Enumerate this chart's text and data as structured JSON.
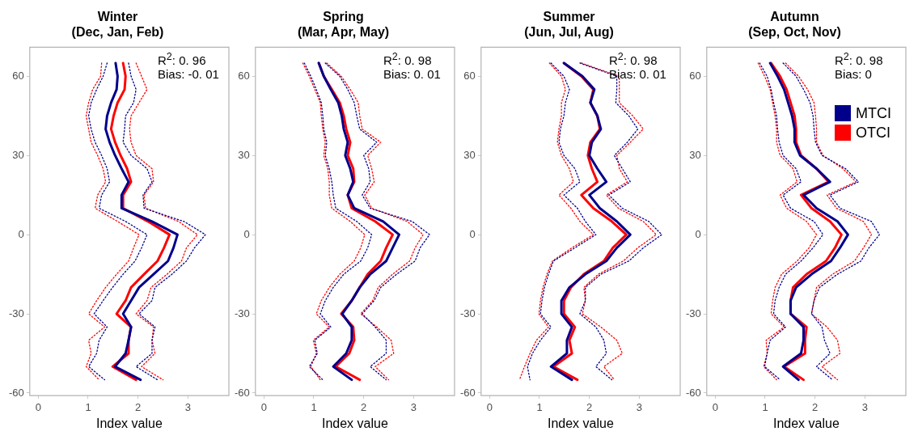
{
  "chart_data": [
    {
      "type": "line",
      "title": "Winter",
      "subtitle": "(Dec, Jan, Feb)",
      "xlabel": "Index value",
      "annotations": [
        "R$^{2}$: 0. 96",
        "Bias: -0. 01"
      ],
      "xlim": [
        -0.17,
        3.82
      ],
      "xticks": [
        0,
        1,
        2,
        3
      ],
      "ylim": [
        -61,
        71
      ],
      "yticks": [
        -60,
        -30,
        0,
        30,
        60
      ],
      "grid": false,
      "marker": "none",
      "series": [
        {
          "color": "#00008b",
          "line_style": "dotted",
          "x": [
            1.38,
            1.3,
            1.17,
            1.06,
            1.01,
            1.06,
            1.14,
            1.27,
            1.38,
            1.43,
            1.27,
            1.22,
            1.75,
            2.18,
            2.07,
            1.94,
            1.7,
            1.49,
            1.3,
            1.12,
            1.38,
            1.22,
            1.17,
            1.01,
            1.33
          ],
          "values": [
            65,
            60,
            55,
            50,
            45,
            40,
            35,
            30,
            25,
            20,
            15,
            10,
            5,
            0,
            -5,
            -10,
            -15,
            -20,
            -25,
            -30,
            -35,
            -40,
            -45,
            -50,
            -55
          ]
        },
        {
          "color": "#ff0000",
          "line_style": "dotted",
          "x": [
            1.27,
            1.25,
            1.09,
            1.01,
            0.96,
            1.01,
            1.06,
            1.19,
            1.3,
            1.35,
            1.19,
            1.14,
            1.59,
            2.02,
            1.91,
            1.81,
            1.57,
            1.35,
            1.17,
            1.01,
            1.33,
            1.01,
            1.06,
            0.96,
            1.22
          ],
          "values": [
            65,
            60,
            55,
            50,
            45,
            40,
            35,
            30,
            25,
            20,
            15,
            10,
            5,
            0,
            -5,
            -10,
            -15,
            -20,
            -25,
            -30,
            -35,
            -40,
            -45,
            -50,
            -55
          ]
        },
        {
          "color": "#00008b",
          "line_style": "dotted",
          "x": [
            1.81,
            1.86,
            1.96,
            1.91,
            1.75,
            1.73,
            1.7,
            1.86,
            2.18,
            2.28,
            2.1,
            2.12,
            2.92,
            3.35,
            3.13,
            2.97,
            2.68,
            2.34,
            2.28,
            2.02,
            2.34,
            2.28,
            2.28,
            1.96,
            2.39
          ],
          "values": [
            65,
            60,
            55,
            50,
            45,
            40,
            35,
            30,
            25,
            20,
            15,
            10,
            5,
            0,
            -5,
            -10,
            -15,
            -20,
            -25,
            -30,
            -35,
            -40,
            -45,
            -50,
            -55
          ]
        },
        {
          "color": "#ff0000",
          "line_style": "dotted",
          "x": [
            1.96,
            2.07,
            2.18,
            2.02,
            1.86,
            1.83,
            1.86,
            1.96,
            2.28,
            2.31,
            2.12,
            2.15,
            2.81,
            3.19,
            2.97,
            2.87,
            2.58,
            2.26,
            2.18,
            1.96,
            2.31,
            2.28,
            2.34,
            2.07,
            2.5
          ],
          "values": [
            65,
            60,
            55,
            50,
            45,
            40,
            35,
            30,
            25,
            20,
            15,
            10,
            5,
            0,
            -5,
            -10,
            -15,
            -20,
            -25,
            -30,
            -35,
            -40,
            -45,
            -50,
            -55
          ]
        },
        {
          "color": "#00008b",
          "line_style": "solid",
          "x": [
            1.55,
            1.59,
            1.57,
            1.46,
            1.38,
            1.35,
            1.43,
            1.54,
            1.67,
            1.81,
            1.67,
            1.67,
            2.28,
            2.79,
            2.71,
            2.6,
            2.31,
            2.02,
            1.86,
            1.7,
            1.86,
            1.81,
            1.75,
            1.54,
            2.05
          ],
          "values": [
            65,
            60,
            55,
            50,
            45,
            40,
            35,
            30,
            25,
            20,
            15,
            10,
            5,
            0,
            -5,
            -10,
            -15,
            -20,
            -25,
            -30,
            -35,
            -40,
            -45,
            -50,
            -55
          ]
        },
        {
          "color": "#ff0000",
          "line_style": "solid",
          "x": [
            1.7,
            1.75,
            1.73,
            1.59,
            1.51,
            1.46,
            1.54,
            1.65,
            1.78,
            1.86,
            1.7,
            1.7,
            2.2,
            2.63,
            2.52,
            2.39,
            2.12,
            1.86,
            1.75,
            1.57,
            1.86,
            1.81,
            1.81,
            1.49,
            1.96
          ],
          "values": [
            65,
            60,
            55,
            50,
            45,
            40,
            35,
            30,
            25,
            20,
            15,
            10,
            5,
            0,
            -5,
            -10,
            -15,
            -20,
            -25,
            -30,
            -35,
            -40,
            -45,
            -50,
            -55
          ]
        }
      ]
    },
    {
      "type": "line",
      "title": "Spring",
      "subtitle": "(Mar, Apr, May)",
      "xlabel": "Index value",
      "annotations": [
        "R$^{2}$: 0. 98",
        "Bias: 0. 01"
      ],
      "xlim": [
        -0.17,
        3.82
      ],
      "xticks": [
        0,
        1,
        2,
        3
      ],
      "ylim": [
        -61,
        71
      ],
      "yticks": [
        -60,
        -30,
        0,
        30,
        60
      ],
      "grid": false,
      "marker": "none",
      "series": [
        {
          "color": "#00008b",
          "line_style": "dotted",
          "x": [
            0.81,
            0.94,
            1.05,
            1.15,
            1.18,
            1.2,
            1.26,
            1.23,
            1.31,
            1.36,
            1.39,
            1.44,
            1.86,
            2.16,
            2.08,
            1.94,
            1.6,
            1.39,
            1.23,
            1.13,
            1.34,
            1.02,
            1.07,
            0.91,
            1.18
          ],
          "values": [
            65,
            60,
            55,
            50,
            45,
            40,
            35,
            30,
            25,
            20,
            15,
            10,
            5,
            0,
            -5,
            -10,
            -15,
            -20,
            -25,
            -30,
            -35,
            -40,
            -45,
            -50,
            -55
          ]
        },
        {
          "color": "#ff0000",
          "line_style": "dotted",
          "x": [
            0.78,
            0.91,
            1.02,
            1.13,
            1.15,
            1.18,
            1.23,
            1.2,
            1.28,
            1.31,
            1.31,
            1.36,
            1.73,
            2.02,
            1.94,
            1.81,
            1.52,
            1.31,
            1.15,
            1.05,
            1.31,
            0.99,
            1.05,
            0.94,
            1.13
          ],
          "values": [
            65,
            60,
            55,
            50,
            45,
            40,
            35,
            30,
            25,
            20,
            15,
            10,
            5,
            0,
            -5,
            -10,
            -15,
            -20,
            -25,
            -30,
            -35,
            -40,
            -45,
            -50,
            -55
          ]
        },
        {
          "color": "#00008b",
          "line_style": "dotted",
          "x": [
            1.23,
            1.52,
            1.68,
            1.81,
            1.86,
            1.92,
            2.26,
            2.0,
            2.1,
            2.13,
            1.97,
            2.13,
            2.97,
            3.32,
            3.13,
            3.03,
            2.66,
            2.34,
            2.21,
            1.97,
            2.23,
            2.45,
            2.45,
            2.13,
            2.45
          ],
          "values": [
            65,
            60,
            55,
            50,
            45,
            40,
            35,
            30,
            25,
            20,
            15,
            10,
            5,
            0,
            -5,
            -10,
            -15,
            -20,
            -25,
            -30,
            -35,
            -40,
            -45,
            -50,
            -55
          ]
        },
        {
          "color": "#ff0000",
          "line_style": "dotted",
          "x": [
            1.26,
            1.55,
            1.73,
            1.89,
            1.92,
            1.97,
            2.34,
            2.08,
            2.16,
            2.21,
            2.02,
            2.16,
            2.87,
            3.19,
            3.03,
            2.92,
            2.58,
            2.29,
            2.18,
            1.94,
            2.26,
            2.55,
            2.6,
            2.23,
            2.5
          ],
          "values": [
            65,
            60,
            55,
            50,
            45,
            40,
            35,
            30,
            25,
            20,
            15,
            10,
            5,
            0,
            -5,
            -10,
            -15,
            -20,
            -25,
            -30,
            -35,
            -40,
            -45,
            -50,
            -55
          ]
        },
        {
          "color": "#00008b",
          "line_style": "solid",
          "x": [
            1.1,
            1.2,
            1.34,
            1.49,
            1.56,
            1.6,
            1.68,
            1.63,
            1.73,
            1.79,
            1.68,
            1.81,
            2.39,
            2.71,
            2.58,
            2.45,
            2.13,
            1.92,
            1.76,
            1.57,
            1.76,
            1.76,
            1.65,
            1.39,
            1.76
          ],
          "values": [
            65,
            60,
            55,
            50,
            45,
            40,
            35,
            30,
            25,
            20,
            15,
            10,
            5,
            0,
            -5,
            -10,
            -15,
            -20,
            -25,
            -30,
            -35,
            -40,
            -45,
            -50,
            -55
          ]
        },
        {
          "color": "#ff0000",
          "line_style": "solid",
          "x": [
            1.1,
            1.2,
            1.36,
            1.52,
            1.6,
            1.65,
            1.73,
            1.68,
            1.79,
            1.81,
            1.68,
            1.76,
            2.23,
            2.58,
            2.45,
            2.34,
            2.08,
            1.92,
            1.76,
            1.55,
            1.79,
            1.81,
            1.71,
            1.44,
            1.92
          ],
          "values": [
            65,
            60,
            55,
            50,
            45,
            40,
            35,
            30,
            25,
            20,
            15,
            10,
            5,
            0,
            -5,
            -10,
            -15,
            -20,
            -25,
            -30,
            -35,
            -40,
            -45,
            -50,
            -55
          ]
        }
      ]
    },
    {
      "type": "line",
      "title": "Summer",
      "subtitle": "(Jun, Jul, Aug)",
      "xlabel": "Index value",
      "annotations": [
        "R$^{2}$: 0. 98",
        "Bias: 0. 01"
      ],
      "xlim": [
        -0.17,
        3.82
      ],
      "xticks": [
        0,
        1,
        2,
        3
      ],
      "ylim": [
        -61,
        71
      ],
      "yticks": [
        -60,
        -30,
        0,
        30,
        60
      ],
      "grid": false,
      "marker": "none",
      "series": [
        {
          "color": "#00008b",
          "line_style": "dotted",
          "x": [
            1.23,
            1.49,
            1.6,
            1.52,
            1.49,
            1.42,
            1.39,
            1.49,
            1.71,
            1.81,
            1.49,
            1.76,
            1.92,
            2.13,
            1.71,
            1.28,
            1.18,
            1.1,
            1.05,
            1.02,
            1.23,
            1.02,
            0.86,
            0.76,
            0.81
          ],
          "values": [
            65,
            60,
            55,
            50,
            45,
            40,
            35,
            30,
            25,
            20,
            15,
            10,
            5,
            0,
            -5,
            -10,
            -15,
            -20,
            -25,
            -30,
            -35,
            -40,
            -45,
            -50,
            -55
          ]
        },
        {
          "color": "#ff0000",
          "line_style": "dotted",
          "x": [
            1.2,
            1.44,
            1.52,
            1.44,
            1.44,
            1.39,
            1.36,
            1.44,
            1.6,
            1.68,
            1.39,
            1.63,
            1.81,
            2.08,
            1.65,
            1.26,
            1.15,
            1.07,
            1.02,
            0.99,
            1.18,
            0.94,
            0.81,
            0.7,
            0.6
          ],
          "values": [
            65,
            60,
            55,
            50,
            45,
            40,
            35,
            30,
            25,
            20,
            15,
            10,
            5,
            0,
            -5,
            -10,
            -15,
            -20,
            -25,
            -30,
            -35,
            -40,
            -45,
            -50,
            -55
          ]
        },
        {
          "color": "#00008b",
          "line_style": "dotted",
          "x": [
            1.81,
            2.55,
            2.55,
            2.53,
            2.79,
            2.97,
            2.76,
            2.5,
            2.66,
            2.82,
            2.39,
            2.66,
            3.19,
            3.45,
            3.08,
            2.79,
            2.23,
            1.92,
            1.92,
            1.81,
            2.13,
            2.29,
            2.34,
            2.13,
            2.45
          ],
          "values": [
            65,
            60,
            55,
            50,
            45,
            40,
            35,
            30,
            25,
            20,
            15,
            10,
            5,
            0,
            -5,
            -10,
            -15,
            -20,
            -25,
            -30,
            -35,
            -40,
            -45,
            -50,
            -55
          ]
        },
        {
          "color": "#ff0000",
          "line_style": "dotted",
          "x": [
            1.84,
            2.6,
            2.6,
            2.6,
            2.87,
            3.08,
            2.82,
            2.55,
            2.6,
            2.76,
            2.34,
            2.58,
            3.08,
            3.34,
            2.97,
            2.68,
            2.18,
            1.89,
            1.92,
            1.86,
            2.23,
            2.55,
            2.66,
            2.29,
            2.5
          ],
          "values": [
            65,
            60,
            55,
            50,
            45,
            40,
            35,
            30,
            25,
            20,
            15,
            10,
            5,
            0,
            -5,
            -10,
            -15,
            -20,
            -25,
            -30,
            -35,
            -40,
            -45,
            -50,
            -55
          ]
        },
        {
          "color": "#00008b",
          "line_style": "solid",
          "x": [
            1.49,
            1.86,
            2.1,
            2.02,
            2.16,
            2.23,
            2.05,
            2.0,
            2.16,
            2.34,
            2.0,
            2.21,
            2.55,
            2.82,
            2.55,
            2.34,
            1.92,
            1.6,
            1.44,
            1.44,
            1.65,
            1.55,
            1.55,
            1.23,
            1.65
          ],
          "values": [
            65,
            60,
            55,
            50,
            45,
            40,
            35,
            30,
            25,
            20,
            15,
            10,
            5,
            0,
            -5,
            -10,
            -15,
            -20,
            -25,
            -30,
            -35,
            -40,
            -45,
            -50,
            -55
          ]
        },
        {
          "color": "#ff0000",
          "line_style": "solid",
          "x": [
            1.49,
            1.84,
            2.08,
            2.02,
            2.16,
            2.21,
            2.02,
            1.97,
            2.05,
            2.16,
            1.84,
            2.08,
            2.45,
            2.74,
            2.47,
            2.29,
            1.89,
            1.63,
            1.49,
            1.49,
            1.71,
            1.6,
            1.65,
            1.28,
            1.76
          ],
          "values": [
            65,
            60,
            55,
            50,
            45,
            40,
            35,
            30,
            25,
            20,
            15,
            10,
            5,
            0,
            -5,
            -10,
            -15,
            -20,
            -25,
            -30,
            -35,
            -40,
            -45,
            -50,
            -55
          ]
        }
      ]
    },
    {
      "type": "line",
      "title": "Autumn",
      "subtitle": "(Sep, Oct, Nov)",
      "xlabel": "Index value",
      "annotations": [
        "R$^{2}$: 0. 98",
        "Bias: 0"
      ],
      "xlim": [
        -0.17,
        3.82
      ],
      "xticks": [
        0,
        1,
        2,
        3
      ],
      "ylim": [
        -61,
        71
      ],
      "yticks": [
        -60,
        -30,
        0,
        30,
        60
      ],
      "grid": false,
      "marker": "none",
      "legend": "top right",
      "series": [
        {
          "color": "#00008b",
          "line_style": "dotted",
          "x": [
            0.89,
            1.04,
            1.12,
            1.17,
            1.23,
            1.25,
            1.28,
            1.36,
            1.62,
            1.72,
            1.36,
            1.51,
            1.98,
            2.16,
            1.96,
            1.72,
            1.41,
            1.28,
            1.2,
            1.17,
            1.41,
            1.1,
            1.04,
            0.99,
            1.3
          ],
          "values": [
            65,
            60,
            55,
            50,
            45,
            40,
            35,
            30,
            25,
            20,
            15,
            10,
            5,
            0,
            -5,
            -10,
            -15,
            -20,
            -25,
            -30,
            -35,
            -40,
            -45,
            -50,
            -55
          ]
        },
        {
          "color": "#ff0000",
          "line_style": "dotted",
          "x": [
            0.86,
            0.99,
            1.1,
            1.15,
            1.2,
            1.23,
            1.23,
            1.3,
            1.56,
            1.64,
            1.3,
            1.43,
            1.83,
            2.03,
            1.88,
            1.64,
            1.33,
            1.2,
            1.15,
            1.12,
            1.38,
            1.02,
            1.04,
            0.97,
            1.23
          ],
          "values": [
            65,
            60,
            55,
            50,
            45,
            40,
            35,
            30,
            25,
            20,
            15,
            10,
            5,
            0,
            -5,
            -10,
            -15,
            -20,
            -25,
            -30,
            -35,
            -40,
            -45,
            -50,
            -55
          ]
        },
        {
          "color": "#00008b",
          "line_style": "dotted",
          "x": [
            1.36,
            1.62,
            1.77,
            1.9,
            1.96,
            1.98,
            2.01,
            2.14,
            2.61,
            2.87,
            2.3,
            2.5,
            3.13,
            3.29,
            3.08,
            2.92,
            2.45,
            2.09,
            1.98,
            1.93,
            2.14,
            2.19,
            2.3,
            2.03,
            2.35
          ],
          "values": [
            65,
            60,
            55,
            50,
            45,
            40,
            35,
            30,
            25,
            20,
            15,
            10,
            5,
            0,
            -5,
            -10,
            -15,
            -20,
            -25,
            -30,
            -35,
            -40,
            -45,
            -50,
            -55
          ]
        },
        {
          "color": "#ff0000",
          "line_style": "dotted",
          "x": [
            1.41,
            1.67,
            1.85,
            1.98,
            2.01,
            2.03,
            2.03,
            2.16,
            2.56,
            2.82,
            2.24,
            2.43,
            2.97,
            3.13,
            2.97,
            2.79,
            2.35,
            2.03,
            1.98,
            1.93,
            2.24,
            2.45,
            2.5,
            2.14,
            2.45
          ],
          "values": [
            65,
            60,
            55,
            50,
            45,
            40,
            35,
            30,
            25,
            20,
            15,
            10,
            5,
            0,
            -5,
            -10,
            -15,
            -20,
            -25,
            -30,
            -35,
            -40,
            -45,
            -50,
            -55
          ]
        },
        {
          "name": "MTCI",
          "color": "#00008b",
          "line_style": "solid",
          "x": [
            1.1,
            1.25,
            1.38,
            1.46,
            1.54,
            1.59,
            1.59,
            1.7,
            2.03,
            2.3,
            1.77,
            2.03,
            2.45,
            2.66,
            2.5,
            2.32,
            1.93,
            1.62,
            1.51,
            1.51,
            1.77,
            1.77,
            1.72,
            1.36,
            1.67
          ],
          "values": [
            65,
            60,
            55,
            50,
            45,
            40,
            35,
            30,
            25,
            20,
            15,
            10,
            5,
            0,
            -5,
            -10,
            -15,
            -20,
            -25,
            -30,
            -35,
            -40,
            -45,
            -50,
            -55
          ]
        },
        {
          "name": "OTCI",
          "color": "#ff0000",
          "line_style": "solid",
          "x": [
            1.12,
            1.3,
            1.43,
            1.51,
            1.59,
            1.62,
            1.62,
            1.72,
            2.03,
            2.27,
            1.72,
            1.93,
            2.3,
            2.53,
            2.4,
            2.22,
            1.83,
            1.56,
            1.51,
            1.51,
            1.83,
            1.8,
            1.8,
            1.38,
            1.77
          ],
          "values": [
            65,
            60,
            55,
            50,
            45,
            40,
            35,
            30,
            25,
            20,
            15,
            10,
            5,
            0,
            -5,
            -10,
            -15,
            -20,
            -25,
            -30,
            -35,
            -40,
            -45,
            -50,
            -55
          ]
        }
      ]
    }
  ]
}
